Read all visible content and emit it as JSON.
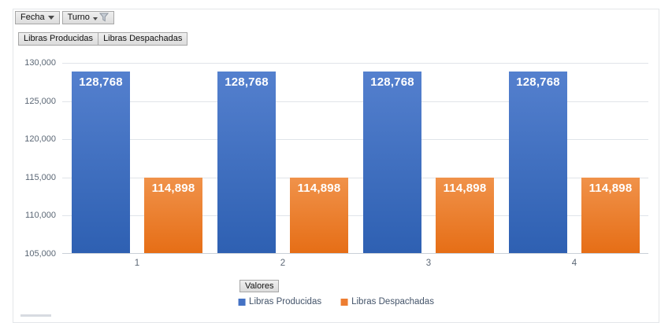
{
  "filter_buttons": {
    "fecha_label": "Fecha",
    "turno_label": "Turno",
    "series_buttons": [
      "Libras Producidas",
      "Libras Despachadas"
    ],
    "axis_button_label": "Valores"
  },
  "chart_data": {
    "type": "bar",
    "title": "",
    "categories": [
      "1",
      "2",
      "3",
      "4"
    ],
    "series": [
      {
        "name": "Libras Producidas",
        "key": "libras-producidas",
        "values": [
          128768,
          128768,
          128768,
          128768
        ],
        "labels": [
          "128,768",
          "128,768",
          "128,768",
          "128,768"
        ],
        "color": "#4472C4",
        "gradient": [
          "#5480CE",
          "#2E60B2"
        ]
      },
      {
        "name": "Libras Despachadas",
        "key": "libras-despachadas",
        "values": [
          114898,
          114898,
          114898,
          114898
        ],
        "labels": [
          "114,898",
          "114,898",
          "114,898",
          "114,898"
        ],
        "color": "#ED7D31",
        "gradient": [
          "#F0924A",
          "#E66E16"
        ]
      }
    ],
    "ylim": [
      105000,
      130000
    ],
    "ytick_interval": 5000,
    "yticks": [
      "130,000",
      "125,000",
      "120,000",
      "115,000",
      "110,000",
      "105,000"
    ],
    "grid": true,
    "data_labels": true,
    "legend_position": "bottom"
  },
  "legend": {
    "items": [
      {
        "label": "Libras Producidas",
        "color": "#4472C4"
      },
      {
        "label": "Libras Despachadas",
        "color": "#ED7D31"
      }
    ]
  }
}
